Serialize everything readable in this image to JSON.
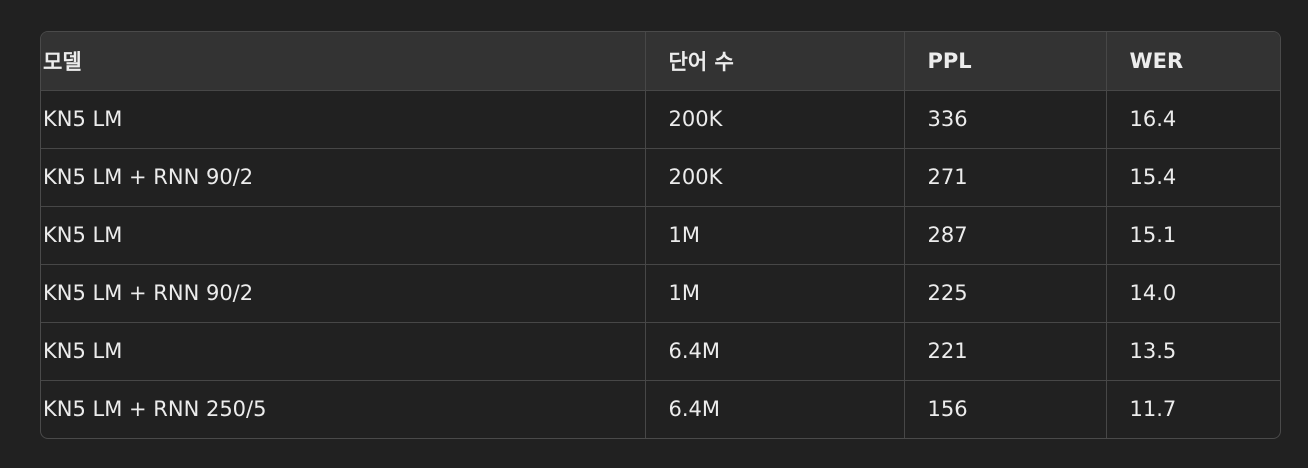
{
  "table": {
    "headers": [
      "모델",
      "단어 수",
      "PPL",
      "WER"
    ],
    "rows": [
      [
        "KN5 LM",
        "200K",
        "336",
        "16.4"
      ],
      [
        "KN5 LM + RNN 90/2",
        "200K",
        "271",
        "15.4"
      ],
      [
        "KN5 LM",
        "1M",
        "287",
        "15.1"
      ],
      [
        "KN5 LM + RNN 90/2",
        "1M",
        "225",
        "14.0"
      ],
      [
        "KN5 LM",
        "6.4M",
        "221",
        "13.5"
      ],
      [
        "KN5 LM + RNN 250/5",
        "6.4M",
        "156",
        "11.7"
      ]
    ]
  },
  "colors": {
    "background": "#212121",
    "header_background": "#333333",
    "border": "#474747",
    "text": "#ececec"
  }
}
